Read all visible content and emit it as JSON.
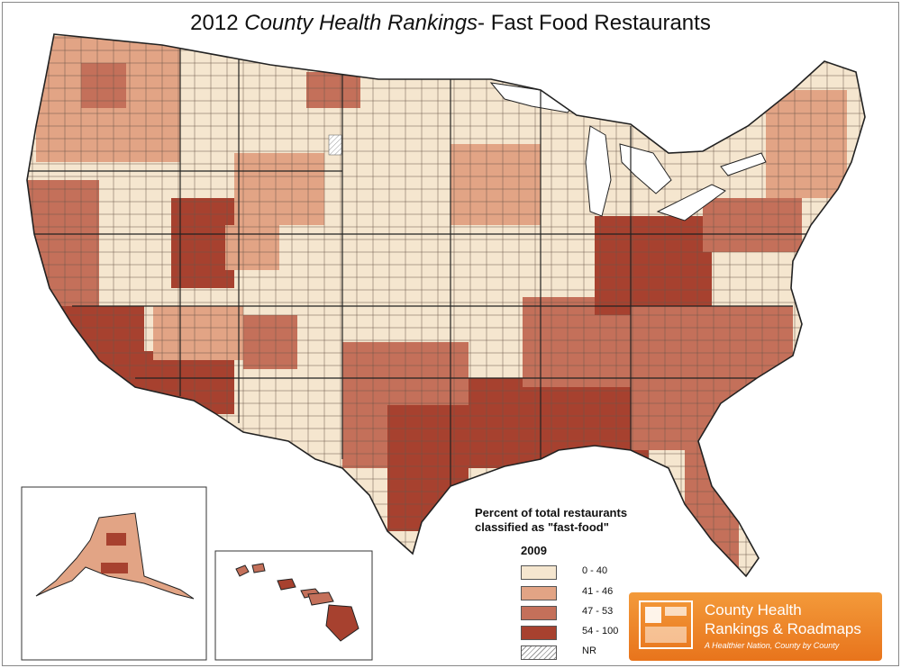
{
  "title": {
    "year": "2012",
    "italic": "County Health Rankings",
    "rest": "- Fast Food Restaurants"
  },
  "legend": {
    "title_line1": "Percent of total restaurants",
    "title_line2": "classified as \"fast-food\"",
    "year": "2009",
    "items": [
      {
        "label": "0 - 40",
        "color": "#f5e6cf"
      },
      {
        "label": "41 - 46",
        "color": "#e2a485"
      },
      {
        "label": "47 - 53",
        "color": "#c4705a"
      },
      {
        "label": "54 - 100",
        "color": "#a7412f"
      },
      {
        "label": "NR",
        "color": "hatched"
      }
    ]
  },
  "logo": {
    "line1": "County Health",
    "line2": "Rankings & Roadmaps",
    "tagline": "A Healthier Nation, County by County",
    "color": "#ef8a2c"
  },
  "colors": {
    "boundary": "#222222",
    "county_line": "#5a4a40",
    "lake": "#ffffff"
  },
  "regions": {
    "contiguous_us": "United States (lower 48)",
    "alaska": "Alaska",
    "hawaii": "Hawaii"
  }
}
